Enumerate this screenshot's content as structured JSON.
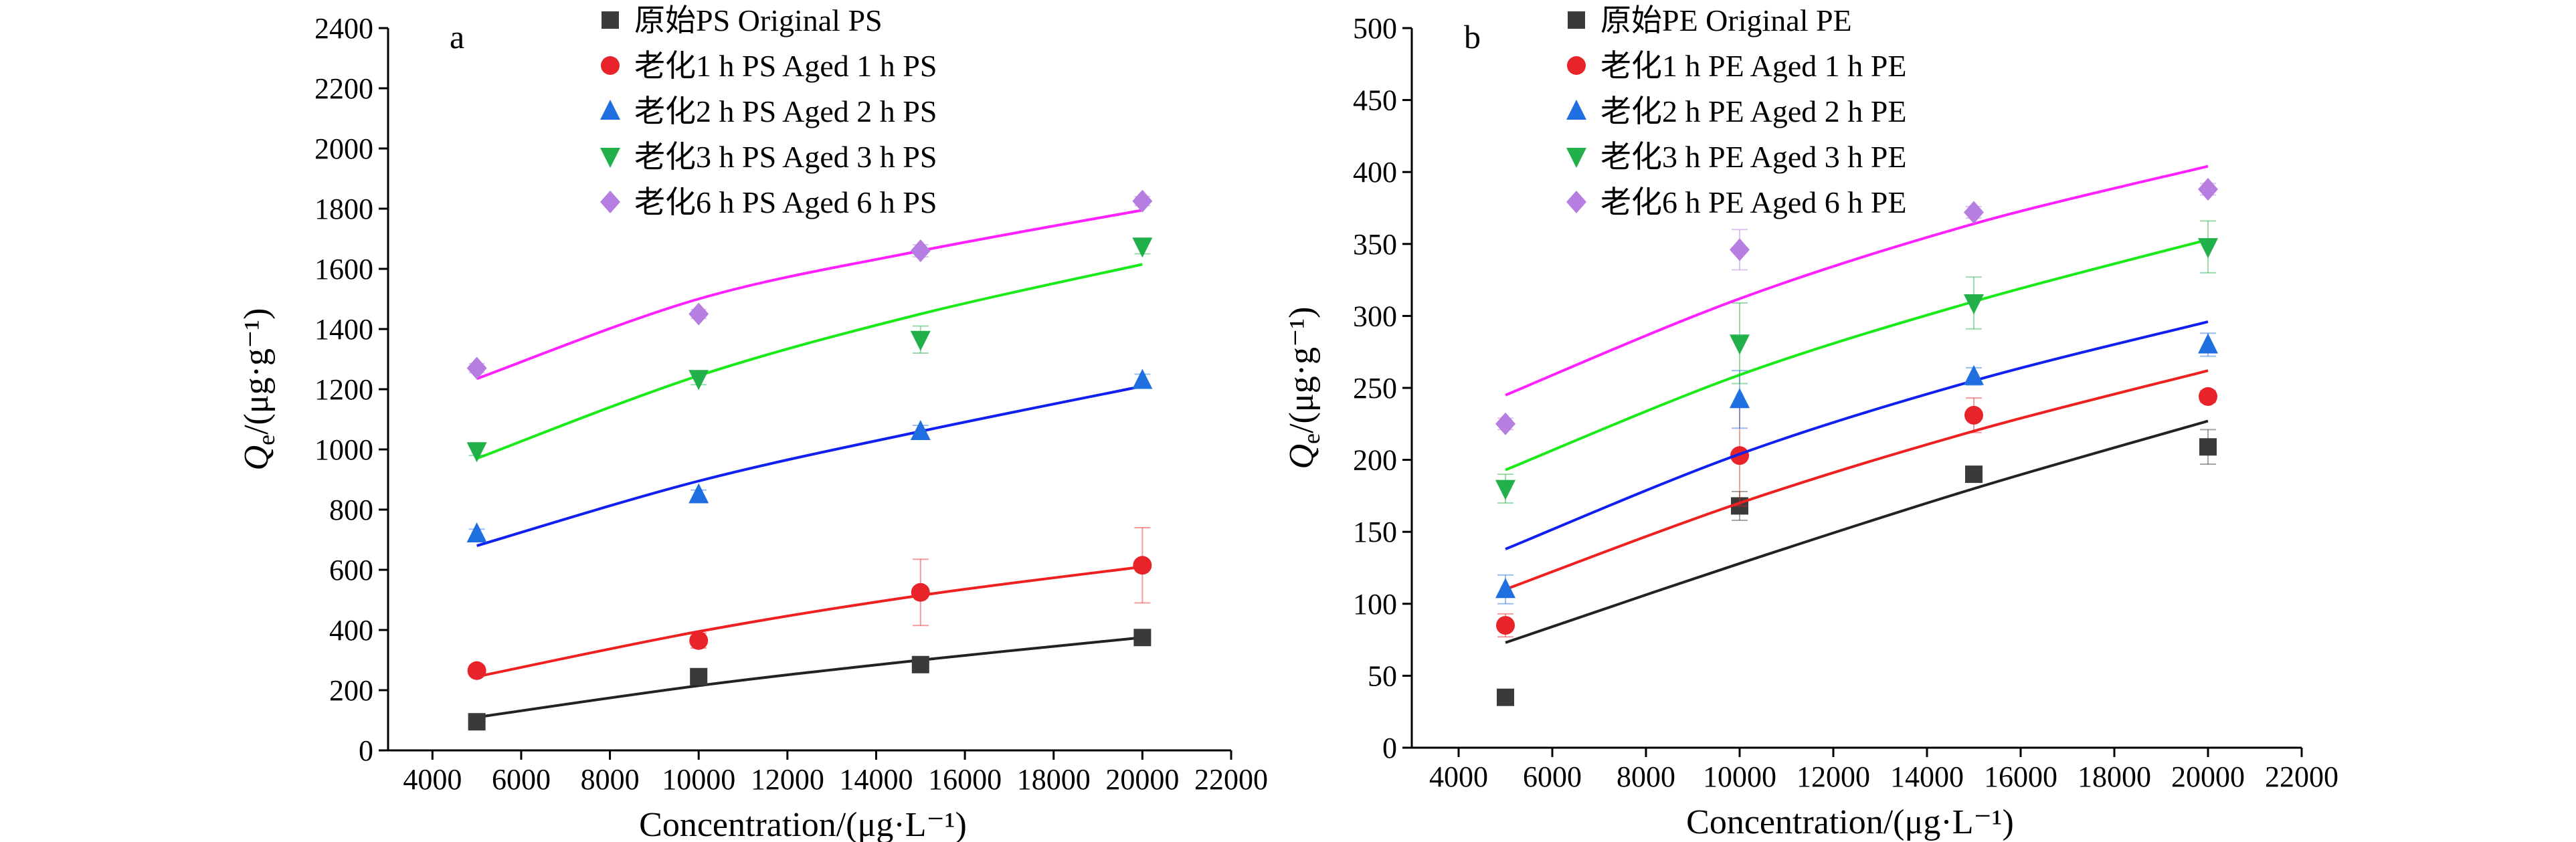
{
  "chart_data": [
    {
      "type": "scatter",
      "panel_label": "a",
      "xlabel": "Concentration/(μg·L⁻¹)",
      "ylabel": "Qe/(μg·g⁻¹)",
      "xlim": [
        3000,
        22000
      ],
      "ylim": [
        0,
        2400
      ],
      "xticks": [
        4000,
        6000,
        8000,
        10000,
        12000,
        14000,
        16000,
        18000,
        20000,
        22000
      ],
      "yticks": [
        0,
        200,
        400,
        600,
        800,
        1000,
        1200,
        1400,
        1600,
        1800,
        2000,
        2200,
        2400
      ],
      "legend_position": "top-center",
      "fit_lines": true,
      "series": [
        {
          "name": "原始PS  Original PS",
          "color": "#3a3a3a",
          "marker": "square",
          "x": [
            5000,
            10000,
            15000,
            20000
          ],
          "y": [
            95,
            245,
            285,
            375
          ],
          "err": [
            15,
            20,
            20,
            25
          ],
          "fit_color": "#222222",
          "fit_y": [
            110,
            215,
            300,
            375
          ]
        },
        {
          "name": "老化1 h PS  Aged 1 h PS",
          "color": "#e8242a",
          "marker": "circle",
          "x": [
            5000,
            10000,
            15000,
            20000
          ],
          "y": [
            265,
            365,
            525,
            615
          ],
          "err": [
            15,
            25,
            110,
            125
          ],
          "fit_color": "#ee2020",
          "fit_y": [
            245,
            395,
            515,
            610
          ]
        },
        {
          "name": "老化2 h PS  Aged 2 h PS",
          "color": "#1f6fe0",
          "marker": "triangle-up",
          "x": [
            5000,
            10000,
            15000,
            20000
          ],
          "y": [
            720,
            850,
            1060,
            1230
          ],
          "err": [
            15,
            15,
            20,
            20
          ],
          "fit_color": "#1020f0",
          "fit_y": [
            680,
            895,
            1060,
            1210
          ]
        },
        {
          "name": "老化3 h PS Aged 3 h PS",
          "color": "#22b04a",
          "marker": "triangle-down",
          "x": [
            5000,
            10000,
            15000,
            20000
          ],
          "y": [
            995,
            1235,
            1365,
            1675
          ],
          "err": [
            15,
            20,
            45,
            25
          ],
          "fit_color": "#1aea1a",
          "fit_y": [
            970,
            1245,
            1450,
            1615
          ]
        },
        {
          "name": "老化6 h PS  Aged 6 h PS",
          "color": "#b57ee0",
          "marker": "diamond",
          "x": [
            5000,
            10000,
            15000,
            20000
          ],
          "y": [
            1270,
            1450,
            1660,
            1825
          ],
          "err": [
            15,
            15,
            20,
            15
          ],
          "fit_color": "#ff22ff",
          "fit_y": [
            1235,
            1500,
            1660,
            1795
          ]
        }
      ]
    },
    {
      "type": "scatter",
      "panel_label": "b",
      "xlabel": "Concentration/(μg·L⁻¹)",
      "ylabel": "Qe/(μg·g⁻¹)",
      "xlim": [
        3000,
        22000
      ],
      "ylim": [
        0,
        500
      ],
      "xticks": [
        4000,
        6000,
        8000,
        10000,
        12000,
        14000,
        16000,
        18000,
        20000,
        22000
      ],
      "yticks": [
        0,
        50,
        100,
        150,
        200,
        250,
        300,
        350,
        400,
        450,
        500
      ],
      "legend_position": "top-center",
      "fit_lines": true,
      "series": [
        {
          "name": "原始PE  Original PE",
          "color": "#3a3a3a",
          "marker": "square",
          "x": [
            5000,
            10000,
            15000,
            20000
          ],
          "y": [
            35,
            168,
            190,
            209
          ],
          "err": [
            3,
            10,
            4,
            12
          ],
          "fit_color": "#222222",
          "fit_y": [
            73,
            128,
            180,
            227
          ]
        },
        {
          "name": "老化1 h PE  Aged 1 h PE",
          "color": "#e8242a",
          "marker": "circle",
          "x": [
            5000,
            10000,
            15000,
            20000
          ],
          "y": [
            85,
            203,
            231,
            244
          ],
          "err": [
            8,
            35,
            12,
            4
          ],
          "fit_color": "#ee2020",
          "fit_y": [
            110,
            170,
            220,
            262
          ]
        },
        {
          "name": "老化2 h PE  Aged 2 h PE",
          "color": "#1f6fe0",
          "marker": "triangle-up",
          "x": [
            5000,
            10000,
            15000,
            20000
          ],
          "y": [
            110,
            242,
            258,
            280
          ],
          "err": [
            10,
            20,
            6,
            8
          ],
          "fit_color": "#1020f0",
          "fit_y": [
            138,
            204,
            255,
            296
          ]
        },
        {
          "name": "老化3 h PE Aged 3 h PE",
          "color": "#22b04a",
          "marker": "triangle-down",
          "x": [
            5000,
            10000,
            15000,
            20000
          ],
          "y": [
            180,
            281,
            309,
            348
          ],
          "err": [
            10,
            28,
            18,
            18
          ],
          "fit_color": "#1aea1a",
          "fit_y": [
            193,
            259,
            310,
            353
          ]
        },
        {
          "name": "老化6 h PE  Aged 6 h PE",
          "color": "#b57ee0",
          "marker": "diamond",
          "x": [
            5000,
            10000,
            15000,
            20000
          ],
          "y": [
            225,
            346,
            372,
            388
          ],
          "err": [
            4,
            14,
            4,
            4
          ],
          "fit_color": "#ff22ff",
          "fit_y": [
            245,
            312,
            364,
            404
          ]
        }
      ]
    }
  ]
}
